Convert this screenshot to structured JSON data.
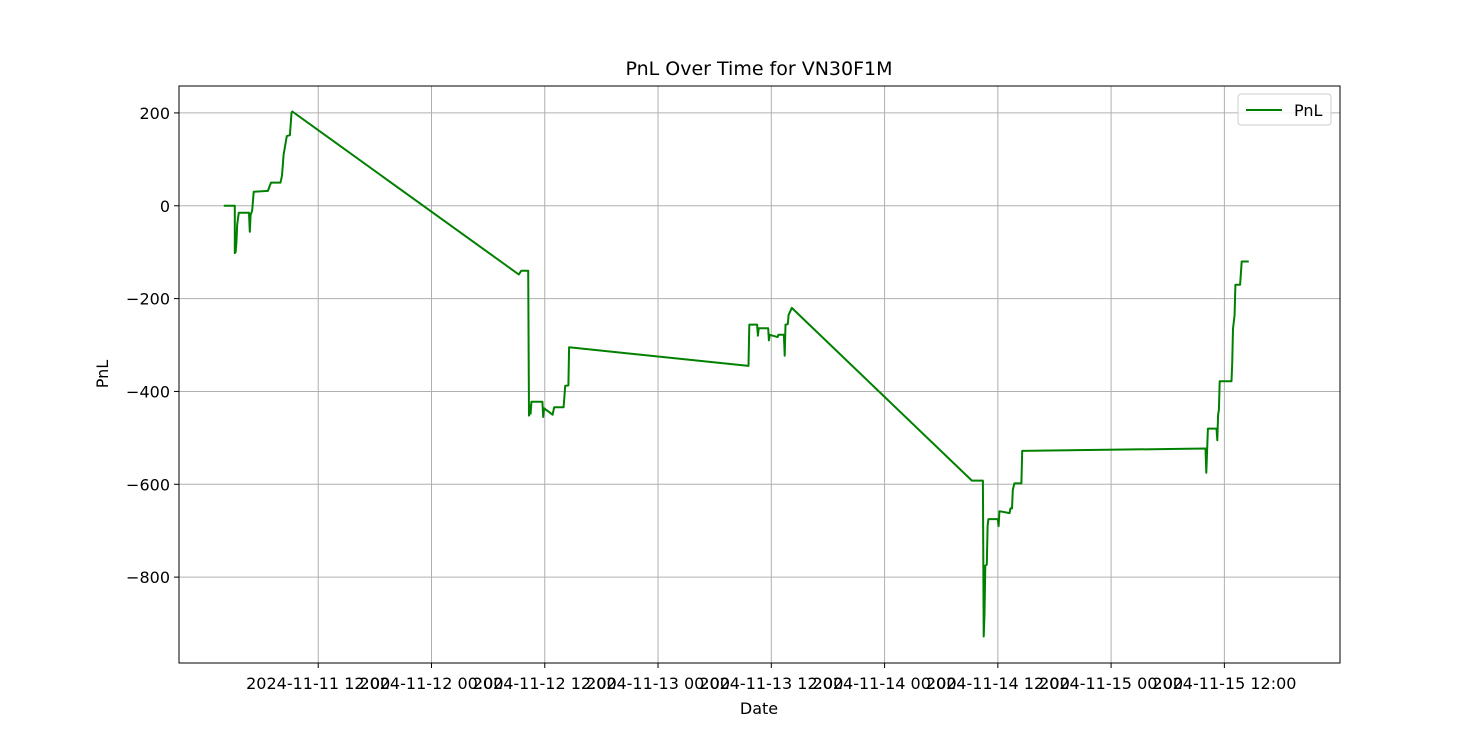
{
  "chart_data": {
    "type": "line",
    "title": "PnL Over Time for VN30F1M",
    "xlabel": "Date",
    "ylabel": "PnL",
    "x_range": [
      "2024-11-10 21:15",
      "2024-11-16 00:15"
    ],
    "ylim": [
      -985,
      258
    ],
    "grid": true,
    "legend_position": "top-right",
    "x_ticks": [
      {
        "value": "2024-11-11 12:00",
        "label": "2024-11-11 12:00"
      },
      {
        "value": "2024-11-12 00:00",
        "label": "2024-11-12 00:00"
      },
      {
        "value": "2024-11-12 12:00",
        "label": "2024-11-12 12:00"
      },
      {
        "value": "2024-11-13 00:00",
        "label": "2024-11-13 00:00"
      },
      {
        "value": "2024-11-13 12:00",
        "label": "2024-11-13 12:00"
      },
      {
        "value": "2024-11-14 00:00",
        "label": "2024-11-14 00:00"
      },
      {
        "value": "2024-11-14 12:00",
        "label": "2024-11-14 12:00"
      },
      {
        "value": "2024-11-15 00:00",
        "label": "2024-11-15 00:00"
      },
      {
        "value": "2024-11-15 12:00",
        "label": "2024-11-15 12:00"
      }
    ],
    "y_ticks": [
      {
        "value": 200,
        "label": "200"
      },
      {
        "value": 0,
        "label": "0"
      },
      {
        "value": -200,
        "label": "−200"
      },
      {
        "value": -400,
        "label": "−400"
      },
      {
        "value": -600,
        "label": "−600"
      },
      {
        "value": -800,
        "label": "−800"
      }
    ],
    "series": [
      {
        "name": "PnL",
        "color": "#008000",
        "points": [
          [
            "2024-11-11 02:00",
            0
          ],
          [
            "2024-11-11 03:10",
            0
          ],
          [
            "2024-11-11 03:10",
            -102
          ],
          [
            "2024-11-11 03:15",
            -100
          ],
          [
            "2024-11-11 03:20",
            -80
          ],
          [
            "2024-11-11 03:25",
            -40
          ],
          [
            "2024-11-11 03:35",
            -15
          ],
          [
            "2024-11-11 04:40",
            -15
          ],
          [
            "2024-11-11 04:45",
            -56
          ],
          [
            "2024-11-11 04:50",
            -20
          ],
          [
            "2024-11-11 05:00",
            -10
          ],
          [
            "2024-11-11 05:10",
            30
          ],
          [
            "2024-11-11 06:40",
            32
          ],
          [
            "2024-11-11 07:00",
            50
          ],
          [
            "2024-11-11 08:00",
            50
          ],
          [
            "2024-11-11 08:10",
            65
          ],
          [
            "2024-11-11 08:20",
            110
          ],
          [
            "2024-11-11 08:40",
            150
          ],
          [
            "2024-11-11 09:00",
            152
          ],
          [
            "2024-11-11 09:10",
            200
          ],
          [
            "2024-11-11 09:15",
            203
          ],
          [
            "2024-11-12 09:15",
            -148
          ],
          [
            "2024-11-12 09:30",
            -140
          ],
          [
            "2024-11-12 10:15",
            -140
          ],
          [
            "2024-11-12 10:20",
            -452
          ],
          [
            "2024-11-12 10:25",
            -430
          ],
          [
            "2024-11-12 10:30",
            -448
          ],
          [
            "2024-11-12 10:35",
            -422
          ],
          [
            "2024-11-12 11:45",
            -422
          ],
          [
            "2024-11-12 11:50",
            -455
          ],
          [
            "2024-11-12 11:55",
            -436
          ],
          [
            "2024-11-12 12:50",
            -450
          ],
          [
            "2024-11-12 13:00",
            -434
          ],
          [
            "2024-11-12 14:00",
            -434
          ],
          [
            "2024-11-12 14:10",
            -388
          ],
          [
            "2024-11-12 14:30",
            -387
          ],
          [
            "2024-11-12 14:35",
            -305
          ],
          [
            "2024-11-13 09:35",
            -345
          ],
          [
            "2024-11-13 09:40",
            -256
          ],
          [
            "2024-11-13 10:30",
            -256
          ],
          [
            "2024-11-13 10:35",
            -280
          ],
          [
            "2024-11-13 10:40",
            -264
          ],
          [
            "2024-11-13 11:40",
            -264
          ],
          [
            "2024-11-13 11:45",
            -290
          ],
          [
            "2024-11-13 11:50",
            -278
          ],
          [
            "2024-11-13 12:40",
            -283
          ],
          [
            "2024-11-13 12:45",
            -278
          ],
          [
            "2024-11-13 13:20",
            -278
          ],
          [
            "2024-11-13 13:25",
            -323
          ],
          [
            "2024-11-13 13:30",
            -256
          ],
          [
            "2024-11-13 13:45",
            -255
          ],
          [
            "2024-11-13 13:50",
            -235
          ],
          [
            "2024-11-13 14:10",
            -220
          ],
          [
            "2024-11-14 09:15",
            -592
          ],
          [
            "2024-11-14 10:25",
            -592
          ],
          [
            "2024-11-14 10:30",
            -928
          ],
          [
            "2024-11-14 10:35",
            -880
          ],
          [
            "2024-11-14 10:40",
            -775
          ],
          [
            "2024-11-14 10:50",
            -773
          ],
          [
            "2024-11-14 10:55",
            -690
          ],
          [
            "2024-11-14 11:00",
            -675
          ],
          [
            "2024-11-14 12:00",
            -675
          ],
          [
            "2024-11-14 12:05",
            -690
          ],
          [
            "2024-11-14 12:10",
            -658
          ],
          [
            "2024-11-14 13:15",
            -662
          ],
          [
            "2024-11-14 13:20",
            -652
          ],
          [
            "2024-11-14 13:30",
            -652
          ],
          [
            "2024-11-14 13:35",
            -612
          ],
          [
            "2024-11-14 13:45",
            -598
          ],
          [
            "2024-11-14 14:30",
            -598
          ],
          [
            "2024-11-14 14:35",
            -528
          ],
          [
            "2024-11-15 10:00",
            -523
          ],
          [
            "2024-11-15 10:05",
            -575
          ],
          [
            "2024-11-15 10:15",
            -480
          ],
          [
            "2024-11-15 11:10",
            -480
          ],
          [
            "2024-11-15 11:15",
            -505
          ],
          [
            "2024-11-15 11:20",
            -450
          ],
          [
            "2024-11-15 11:25",
            -440
          ],
          [
            "2024-11-15 11:30",
            -378
          ],
          [
            "2024-11-15 12:45",
            -378
          ],
          [
            "2024-11-15 12:50",
            -340
          ],
          [
            "2024-11-15 12:55",
            -265
          ],
          [
            "2024-11-15 13:05",
            -235
          ],
          [
            "2024-11-15 13:10",
            -170
          ],
          [
            "2024-11-15 13:40",
            -170
          ],
          [
            "2024-11-15 13:50",
            -120
          ],
          [
            "2024-11-15 14:35",
            -120
          ]
        ]
      }
    ]
  }
}
